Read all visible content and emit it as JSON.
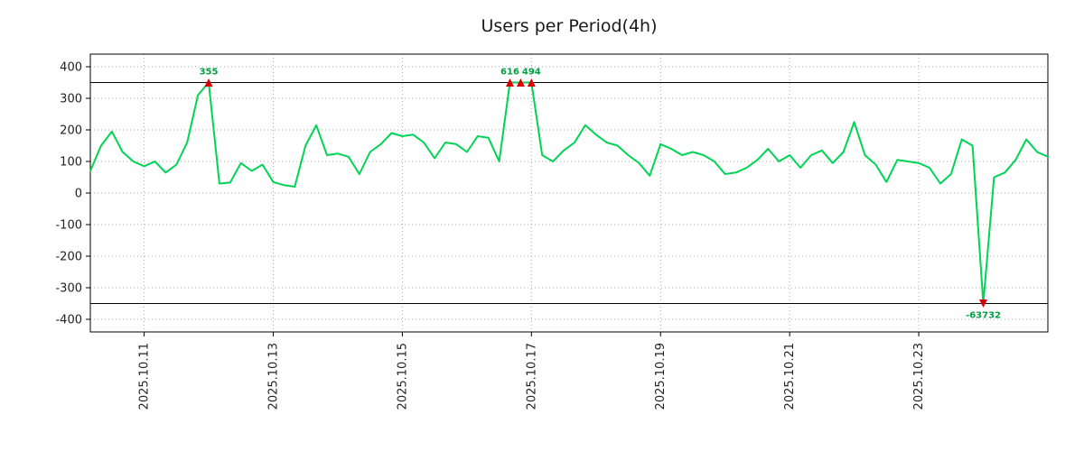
{
  "chart_data": {
    "type": "line",
    "title": "Users per Period(4h)",
    "ylabel": "",
    "xlabel": "",
    "ylim": [
      -440,
      440
    ],
    "y_ticks": [
      400,
      300,
      200,
      100,
      0,
      -100,
      -200,
      -300,
      -400
    ],
    "clip_threshold": 350,
    "x_ticks": [
      {
        "index": 5,
        "label": "2025.10.11"
      },
      {
        "index": 17,
        "label": "2025.10.13"
      },
      {
        "index": 29,
        "label": "2025.10.15"
      },
      {
        "index": 41,
        "label": "2025.10.17"
      },
      {
        "index": 53,
        "label": "2025.10.19"
      },
      {
        "index": 65,
        "label": "2025.10.21"
      },
      {
        "index": 77,
        "label": "2025.10.23"
      }
    ],
    "values": [
      70,
      150,
      195,
      130,
      100,
      85,
      100,
      65,
      90,
      160,
      310,
      355,
      30,
      33,
      95,
      70,
      90,
      35,
      25,
      20,
      150,
      215,
      120,
      125,
      115,
      60,
      130,
      155,
      190,
      180,
      185,
      160,
      110,
      160,
      155,
      130,
      180,
      175,
      100,
      616,
      420,
      494,
      120,
      100,
      135,
      160,
      215,
      185,
      160,
      150,
      120,
      95,
      55,
      155,
      140,
      120,
      130,
      120,
      100,
      60,
      65,
      80,
      105,
      140,
      100,
      120,
      80,
      120,
      135,
      95,
      130,
      225,
      120,
      90,
      35,
      105,
      100,
      95,
      80,
      30,
      60,
      170,
      150,
      -63732,
      50,
      65,
      105,
      170,
      130,
      115
    ],
    "annotations": [
      {
        "index": 11,
        "label": "355"
      },
      {
        "index": 39,
        "label": "616"
      },
      {
        "index": 41,
        "label": "494"
      },
      {
        "index": 83,
        "label": "-63732"
      }
    ],
    "grid": "dotted",
    "legend": "none",
    "colors": {
      "line": "#00d455",
      "marker": "#dd0000",
      "annotation": "#00a040",
      "grid": "#aaaaaa",
      "axis": "#000000",
      "tick_text": "#222222"
    }
  }
}
